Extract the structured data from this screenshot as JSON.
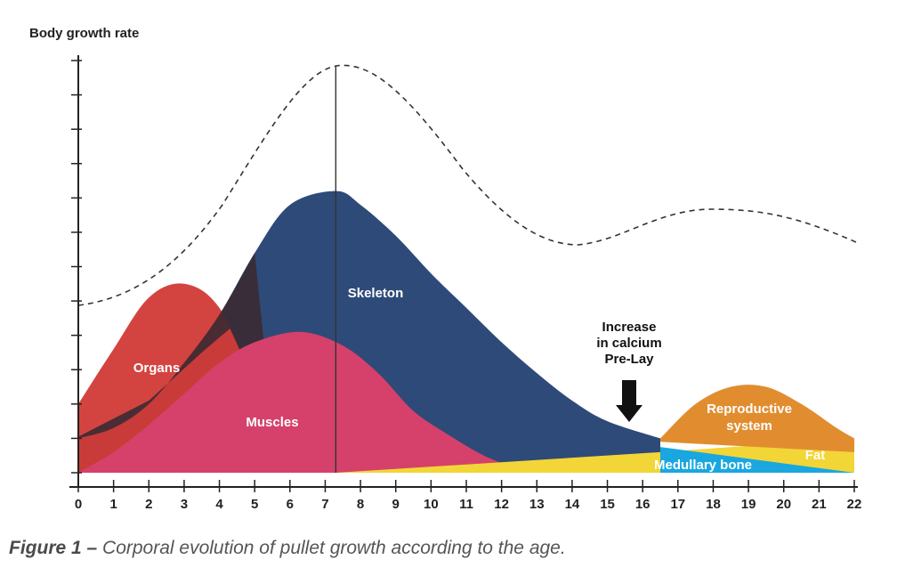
{
  "chart_data": {
    "type": "area",
    "ylabel": "Body growth rate",
    "x_ticks": [
      0,
      1,
      2,
      3,
      4,
      5,
      6,
      7,
      8,
      9,
      10,
      11,
      12,
      13,
      14,
      15,
      16,
      17,
      18,
      19,
      20,
      21,
      22
    ],
    "xlim": [
      0,
      22
    ],
    "ylim": [
      0,
      12
    ],
    "series": [
      {
        "name": "Organs",
        "color": "#d13a36",
        "points": [
          [
            0,
            2
          ],
          [
            1,
            3.6
          ],
          [
            2,
            5.1
          ],
          [
            3,
            5.5
          ],
          [
            4,
            4.8
          ],
          [
            5,
            2.6
          ],
          [
            5.5,
            1.4
          ]
        ]
      },
      {
        "name": "Skeleton",
        "color": "#2e4a78",
        "points": [
          [
            0,
            1
          ],
          [
            1,
            1.3
          ],
          [
            2,
            2
          ],
          [
            3,
            3.2
          ],
          [
            4,
            4.6
          ],
          [
            5,
            6.4
          ],
          [
            6,
            7.8
          ],
          [
            7.3,
            8.2
          ],
          [
            8,
            7.8
          ],
          [
            9,
            6.9
          ],
          [
            10,
            5.8
          ],
          [
            11,
            4.8
          ],
          [
            12,
            3.8
          ],
          [
            13,
            2.9
          ],
          [
            14,
            2.1
          ],
          [
            15,
            1.5
          ],
          [
            16.5,
            1
          ]
        ]
      },
      {
        "name": "Muscles",
        "color": "#d5416a",
        "points": [
          [
            0,
            0
          ],
          [
            1,
            0.6
          ],
          [
            2,
            1.4
          ],
          [
            3,
            2.3
          ],
          [
            4,
            3.2
          ],
          [
            5,
            3.8
          ],
          [
            6.3,
            4.1
          ],
          [
            7.5,
            3.7
          ],
          [
            8.5,
            2.9
          ],
          [
            9.5,
            1.8
          ],
          [
            10.5,
            1.1
          ],
          [
            11.5,
            0.5
          ],
          [
            12.5,
            0.1
          ],
          [
            13,
            0
          ]
        ]
      },
      {
        "name": "Medullary bone",
        "color": "#1aa7e0",
        "points": [
          [
            16.5,
            0.75
          ],
          [
            22,
            0
          ]
        ]
      },
      {
        "name": "Reproductive system",
        "color": "#e18d2f",
        "points": [
          [
            16.5,
            1
          ],
          [
            17.5,
            2
          ],
          [
            18.5,
            2.5
          ],
          [
            19.5,
            2.5
          ],
          [
            20.5,
            2
          ],
          [
            21.5,
            1.3
          ],
          [
            22,
            1
          ]
        ]
      },
      {
        "name": "Fat",
        "color": "#f2d537",
        "points": [
          [
            7.3,
            0
          ],
          [
            16.5,
            0.6
          ],
          [
            22,
            1
          ]
        ]
      }
    ],
    "annotations": [
      {
        "text_lines": [
          "Increase",
          "in calcium",
          "Pre-Lay"
        ],
        "x": 15.7
      }
    ],
    "reference_line_x": 7.3
  },
  "caption": {
    "lead": "Figure 1 –",
    "text": " Corporal evolution of pullet growth according to the age."
  }
}
